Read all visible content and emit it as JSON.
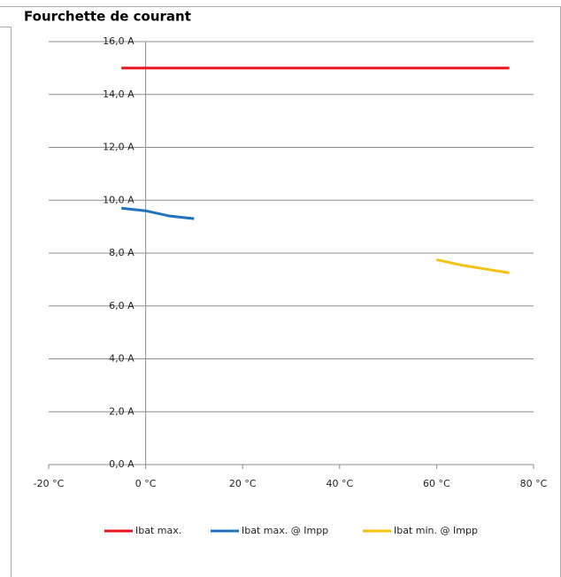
{
  "chart_data": {
    "type": "line",
    "title": "Fourchette de courant",
    "xlim": [
      -20,
      80
    ],
    "xticks": [
      {
        "value": -20,
        "label": "-20 °C"
      },
      {
        "value": 0,
        "label": "0 °C"
      },
      {
        "value": 20,
        "label": "20 °C"
      },
      {
        "value": 40,
        "label": "40 °C"
      },
      {
        "value": 60,
        "label": "60 °C"
      },
      {
        "value": 80,
        "label": "80 °C"
      }
    ],
    "ylim": [
      0,
      16
    ],
    "yticks": [
      {
        "value": 0,
        "label": "0,0 A"
      },
      {
        "value": 2,
        "label": "2,0 A"
      },
      {
        "value": 4,
        "label": "4,0 A"
      },
      {
        "value": 6,
        "label": "6,0 A"
      },
      {
        "value": 8,
        "label": "8,0 A"
      },
      {
        "value": 10,
        "label": "10,0 A"
      },
      {
        "value": 12,
        "label": "12,0 A"
      },
      {
        "value": 14,
        "label": "14,0 A"
      },
      {
        "value": 16,
        "label": "16,0 A"
      }
    ],
    "grid": true,
    "legend": "bottom",
    "series": [
      {
        "name": "Ibat max.",
        "color": "#e8141e",
        "x": [
          -5,
          75
        ],
        "values": [
          15,
          15
        ]
      },
      {
        "name": "Ibat max. @ Impp",
        "color": "#1e73be",
        "x": [
          -5,
          0,
          5,
          10
        ],
        "values": [
          9.7,
          9.6,
          9.4,
          9.3
        ]
      },
      {
        "name": "Ibat min. @ Impp",
        "color": "#f5c211",
        "x": [
          60,
          65,
          70,
          75
        ],
        "values": [
          7.75,
          7.55,
          7.4,
          7.25
        ]
      }
    ]
  }
}
